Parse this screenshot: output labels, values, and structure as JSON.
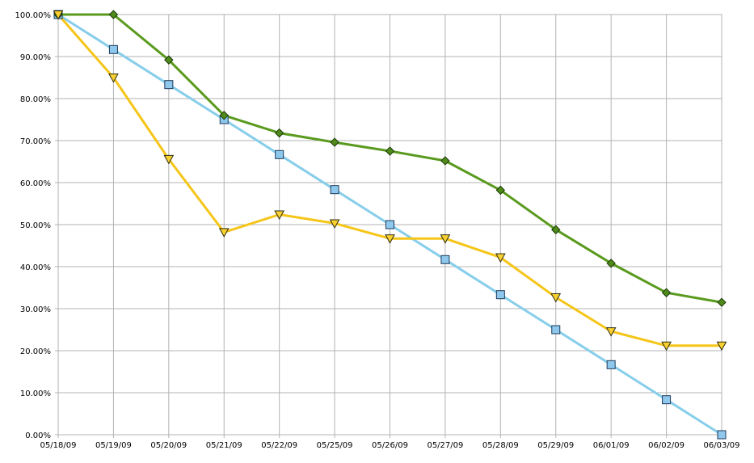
{
  "chart_data": {
    "type": "line",
    "title": "",
    "xlabel": "",
    "ylabel": "",
    "categories": [
      "05/18/09",
      "05/19/09",
      "05/20/09",
      "05/21/09",
      "05/22/09",
      "05/25/09",
      "05/26/09",
      "05/27/09",
      "05/28/09",
      "05/29/09",
      "06/01/09",
      "06/02/09",
      "06/03/09"
    ],
    "y_tick_labels": [
      "0.00%",
      "10.00%",
      "20.00%",
      "30.00%",
      "40.00%",
      "50.00%",
      "60.00%",
      "70.00%",
      "80.00%",
      "90.00%",
      "100.00%"
    ],
    "ylim": [
      0,
      100
    ],
    "grid": true,
    "legend": "none",
    "series": [
      {
        "color": "#87CEEB",
        "marker": "square",
        "values": [
          100,
          91.67,
          83.33,
          75.0,
          66.67,
          58.33,
          50.0,
          41.67,
          33.33,
          25.0,
          16.67,
          8.33,
          0.0
        ]
      },
      {
        "color": "#5A9A1E",
        "marker": "diamond",
        "values": [
          100,
          100,
          89.2,
          76.0,
          71.8,
          69.6,
          67.5,
          65.2,
          58.2,
          48.8,
          40.8,
          33.8,
          31.5
        ]
      },
      {
        "color": "#F5C518",
        "marker": "triangle-down",
        "values": [
          100,
          85.0,
          65.6,
          48.2,
          52.4,
          50.3,
          46.7,
          46.7,
          42.2,
          32.7,
          24.6,
          21.2,
          21.2
        ]
      }
    ]
  }
}
